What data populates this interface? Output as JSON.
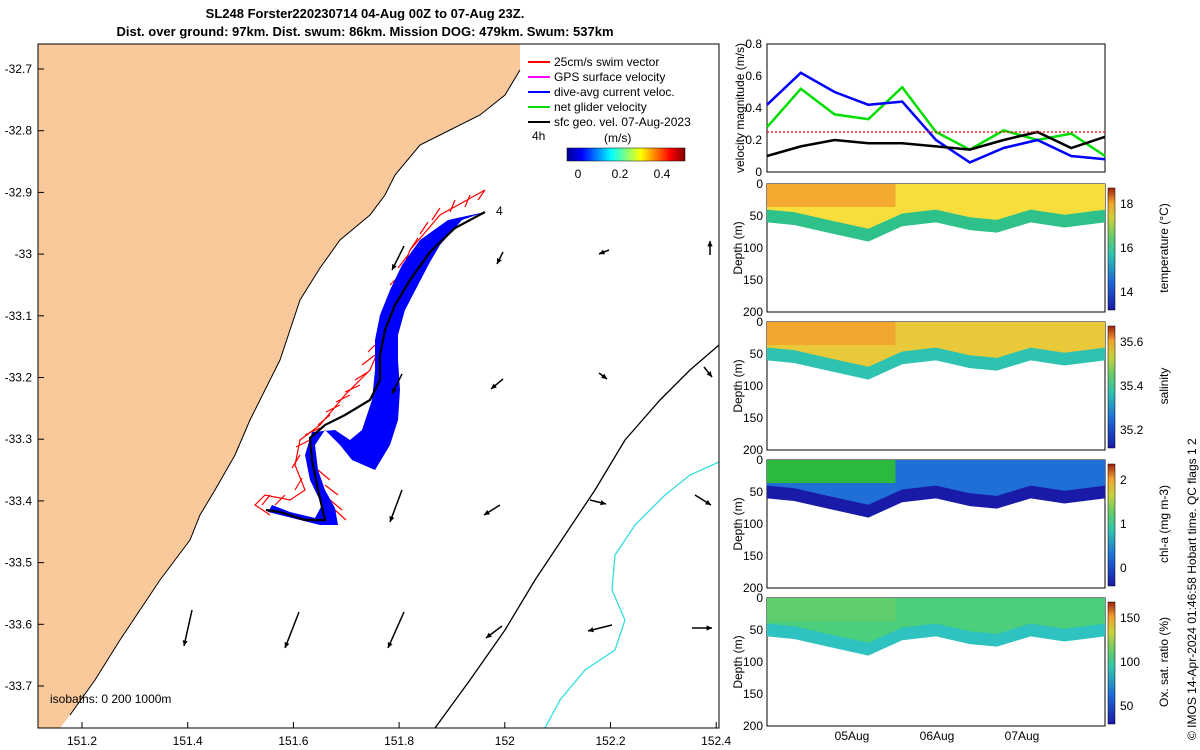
{
  "title_line1": "SL248 Forster220230714 04-Aug 00Z to 07-Aug 23Z.",
  "title_line2": "Dist. over ground: 97km. Dist. swum: 86km. Mission DOG: 479km. Swum: 537km",
  "credit": "© IMOS 14-Apr-2024 01:46:58 Hobart time. QC flags 1  2",
  "colors": {
    "land": "#f9c89b",
    "track": "#000000",
    "swim": "#ff0000",
    "current": "#0000ff",
    "gps": "#ff00ff",
    "net": "#00dd00",
    "isobath200": "#000000",
    "isobath1000": "#33dddd"
  },
  "map": {
    "legend": [
      {
        "label": "25cm/s swim vector",
        "color": "#ff0000"
      },
      {
        "label": "GPS surface velocity",
        "color": "#ff00ff"
      },
      {
        "label": "dive-avg current veloc.",
        "color": "#0000ff"
      },
      {
        "label": "net glider velocity",
        "color": "#00dd00"
      },
      {
        "label": "sfc geo. vel. 07-Aug-2023",
        "color": "#000000"
      }
    ],
    "colorbar_unit": "(m/s)",
    "colorbar_ticks": [
      "0",
      "0.2",
      "0.4"
    ],
    "isobath_label": "isobaths: 0    200  1000m",
    "annot_4h": "4h",
    "annot_4": "4",
    "x_ticks": [
      "151.2",
      "151.4",
      "151.6",
      "151.8",
      "152",
      "152.2",
      "152.4"
    ],
    "y_ticks": [
      "-32.7",
      "-32.8",
      "-32.9",
      "-33",
      "-33.1",
      "-33.2",
      "-33.3",
      "-33.4",
      "-33.5",
      "-33.6",
      "-33.7"
    ]
  },
  "chart_data": [
    {
      "type": "line",
      "ylabel": "velocity magnitude (m/s)",
      "ylim": [
        0,
        0.8
      ],
      "y_ticks": [
        "0",
        "0.2",
        "0.4",
        "0.6",
        "0.8"
      ],
      "x": [
        0,
        0.1,
        0.2,
        0.3,
        0.4,
        0.5,
        0.6,
        0.7,
        0.8,
        0.9,
        1.0
      ],
      "series": [
        {
          "color": "#00dd00",
          "values": [
            0.28,
            0.52,
            0.36,
            0.33,
            0.53,
            0.25,
            0.14,
            0.26,
            0.2,
            0.24,
            0.1
          ]
        },
        {
          "color": "#0000ff",
          "values": [
            0.42,
            0.62,
            0.5,
            0.42,
            0.44,
            0.2,
            0.06,
            0.15,
            0.2,
            0.1,
            0.08
          ]
        },
        {
          "color": "#000000",
          "values": [
            0.1,
            0.16,
            0.2,
            0.18,
            0.18,
            0.16,
            0.14,
            0.2,
            0.25,
            0.15,
            0.22
          ]
        },
        {
          "color": "#ff0000",
          "values": [
            0.25,
            0.25,
            0.25,
            0.25,
            0.25,
            0.25,
            0.25,
            0.25,
            0.25,
            0.25,
            0.25
          ]
        }
      ]
    },
    {
      "type": "heatmap",
      "ylabel": "Depth (m)",
      "clabel": "temperature (°C)",
      "y_ticks": [
        "0",
        "50",
        "100",
        "150",
        "200"
      ],
      "c_ticks": [
        "14",
        "16",
        "18"
      ]
    },
    {
      "type": "heatmap",
      "ylabel": "Depth (m)",
      "clabel": "salinity",
      "y_ticks": [
        "0",
        "50",
        "100",
        "150",
        "200"
      ],
      "c_ticks": [
        "35.2",
        "35.4",
        "35.6"
      ]
    },
    {
      "type": "heatmap",
      "ylabel": "Depth (m)",
      "clabel": "chl-a (mg m-3)",
      "y_ticks": [
        "0",
        "50",
        "100",
        "150",
        "200"
      ],
      "c_ticks": [
        "0",
        "1",
        "2"
      ]
    },
    {
      "type": "heatmap",
      "ylabel": "Depth (m)",
      "clabel": "Ox. sat. ratio (%)",
      "y_ticks": [
        "0",
        "50",
        "100",
        "150",
        "200"
      ],
      "c_ticks": [
        "50",
        "100",
        "150"
      ],
      "x_ticks": [
        "05Aug",
        "06Aug",
        "07Aug"
      ]
    }
  ]
}
